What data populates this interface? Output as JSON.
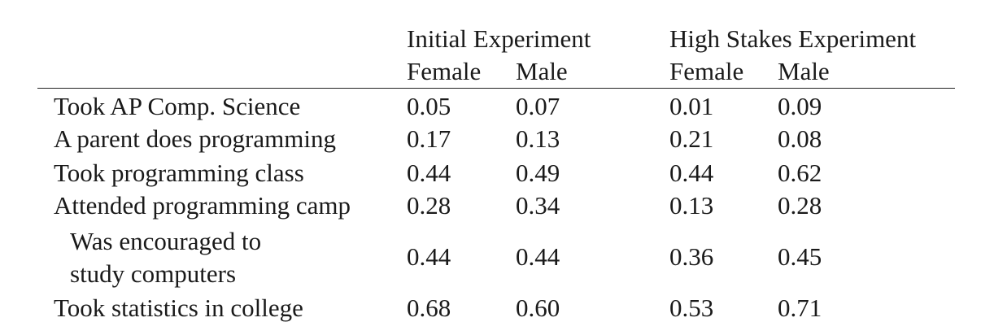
{
  "table": {
    "groups": [
      "Initial Experiment",
      "High Stakes Experiment"
    ],
    "subheaders": [
      "Female",
      "Male",
      "Female",
      "Male"
    ],
    "rows": [
      {
        "label": "Took AP Comp. Science",
        "values": [
          "0.05",
          "0.07",
          "0.01",
          "0.09"
        ]
      },
      {
        "label": "A parent does programming",
        "values": [
          "0.17",
          "0.13",
          "0.21",
          "0.08"
        ]
      },
      {
        "label": "Took programming class",
        "values": [
          "0.44",
          "0.49",
          "0.44",
          "0.62"
        ]
      },
      {
        "label": "Attended programming camp",
        "values": [
          "0.28",
          "0.34",
          "0.13",
          "0.28"
        ]
      },
      {
        "label_lines": [
          "Was encouraged to",
          "study computers"
        ],
        "values": [
          "0.44",
          "0.44",
          "0.36",
          "0.45"
        ]
      },
      {
        "label": "Took statistics in college",
        "values": [
          "0.68",
          "0.60",
          "0.53",
          "0.71"
        ]
      }
    ]
  }
}
